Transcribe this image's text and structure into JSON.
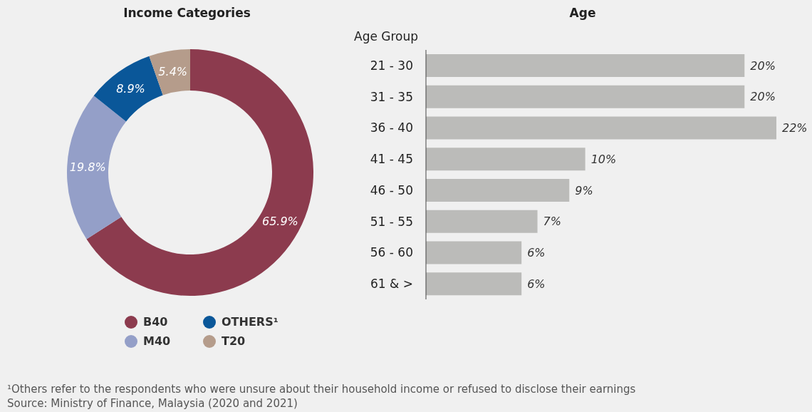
{
  "chart_data": [
    {
      "type": "donut",
      "title": "Income Categories",
      "categories": [
        "B40",
        "M40",
        "OTHERS¹",
        "T20"
      ],
      "values": [
        65.9,
        19.8,
        8.9,
        5.4
      ],
      "colors": [
        "#8c3b4e",
        "#949fc8",
        "#0a5799",
        "#b59c8b"
      ],
      "value_labels": [
        "65.9%",
        "19.8%",
        "8.9%",
        "5.4%"
      ],
      "legend": "bottom",
      "annotations": [
        "¹Others refer to the respondents who were unsure about their household income or refused to disclose their earnings",
        "Source: Ministry of Finance, Malaysia (2020 and 2021)"
      ]
    },
    {
      "type": "bar",
      "orientation": "horizontal",
      "title": "Age",
      "ylabel": "Age Group",
      "categories": [
        "21 - 30",
        "31 - 35",
        "36 - 40",
        "41 - 45",
        "46 - 50",
        "51 - 55",
        "56 - 60",
        "61 & >"
      ],
      "values": [
        20,
        20,
        22,
        10,
        9,
        7,
        6,
        6
      ],
      "color": "#bbbbb9",
      "value_labels": [
        "20%",
        "20%",
        "22%",
        "10%",
        "9%",
        "7%",
        "6%",
        "6%"
      ]
    }
  ]
}
